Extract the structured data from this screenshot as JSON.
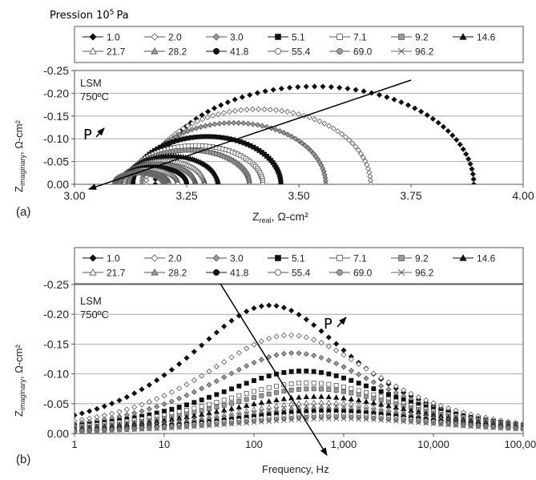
{
  "header": {
    "pression_label": "Pression 10",
    "pression_exp": "5",
    "pression_unit": "Pa"
  },
  "series_style": [
    {
      "name": "1.0",
      "marker": "diamond",
      "fill": "#111111",
      "stroke": "#111111"
    },
    {
      "name": "2.0",
      "marker": "diamond",
      "fill": "#ffffff",
      "stroke": "#555555"
    },
    {
      "name": "3.0",
      "marker": "diamond",
      "fill": "#9a9a9a",
      "stroke": "#555555"
    },
    {
      "name": "5.1",
      "marker": "square",
      "fill": "#111111",
      "stroke": "#111111"
    },
    {
      "name": "7.1",
      "marker": "square",
      "fill": "#ffffff",
      "stroke": "#555555"
    },
    {
      "name": "9.2",
      "marker": "square",
      "fill": "#9a9a9a",
      "stroke": "#555555"
    },
    {
      "name": "14.6",
      "marker": "triangle",
      "fill": "#111111",
      "stroke": "#111111"
    },
    {
      "name": "21.7",
      "marker": "triangle",
      "fill": "#ffffff",
      "stroke": "#555555"
    },
    {
      "name": "28.2",
      "marker": "triangle",
      "fill": "#9a9a9a",
      "stroke": "#555555"
    },
    {
      "name": "41.8",
      "marker": "circle",
      "fill": "#111111",
      "stroke": "#111111"
    },
    {
      "name": "55.4",
      "marker": "circle",
      "fill": "#ffffff",
      "stroke": "#555555"
    },
    {
      "name": "69.0",
      "marker": "circle",
      "fill": "#9a9a9a",
      "stroke": "#555555"
    },
    {
      "name": "96.2",
      "marker": "x",
      "fill": "none",
      "stroke": "#666666"
    }
  ],
  "chart_data": [
    {
      "type": "scatter",
      "panel_label": "(a)",
      "inner_label_line1": "LSM",
      "inner_label_line2": "750ºC",
      "arrow_label": "P",
      "xlabel_main": "Z",
      "xlabel_sub": "real",
      "xlabel_rest": ", Ω-cm²",
      "ylabel_main": "Z",
      "ylabel_sub": "imaginary",
      "ylabel_rest": ", Ω-cm²",
      "xlim": [
        3.0,
        4.0
      ],
      "ylim": [
        0.0,
        -0.25
      ],
      "xticks": [
        "3.00",
        "3.25",
        "3.50",
        "3.75",
        "4.00"
      ],
      "yticks": [
        "-0.25",
        "-0.20",
        "-0.15",
        "-0.10",
        "-0.05",
        "0.00"
      ],
      "legend": "top",
      "series": [
        {
          "name": "1.0",
          "r_start": 3.18,
          "r_end": 3.89,
          "peak": -0.215
        },
        {
          "name": "2.0",
          "r_start": 3.16,
          "r_end": 3.66,
          "peak": -0.165
        },
        {
          "name": "3.0",
          "r_start": 3.15,
          "r_end": 3.56,
          "peak": -0.135
        },
        {
          "name": "5.1",
          "r_start": 3.13,
          "r_end": 3.46,
          "peak": -0.105
        },
        {
          "name": "7.1",
          "r_start": 3.12,
          "r_end": 3.42,
          "peak": -0.085
        },
        {
          "name": "9.2",
          "r_start": 3.12,
          "r_end": 3.39,
          "peak": -0.075
        },
        {
          "name": "14.6",
          "r_start": 3.11,
          "r_end": 3.32,
          "peak": -0.062
        },
        {
          "name": "21.7",
          "r_start": 3.11,
          "r_end": 3.29,
          "peak": -0.052
        },
        {
          "name": "28.2",
          "r_start": 3.1,
          "r_end": 3.27,
          "peak": -0.045
        },
        {
          "name": "41.8",
          "r_start": 3.1,
          "r_end": 3.25,
          "peak": -0.038
        },
        {
          "name": "55.4",
          "r_start": 3.1,
          "r_end": 3.23,
          "peak": -0.032
        },
        {
          "name": "69.0",
          "r_start": 3.09,
          "r_end": 3.21,
          "peak": -0.028
        },
        {
          "name": "96.2",
          "r_start": 3.09,
          "r_end": 3.2,
          "peak": -0.025
        }
      ]
    },
    {
      "type": "scatter",
      "panel_label": "(b)",
      "inner_label_line1": "LSM",
      "inner_label_line2": "750ºC",
      "arrow_label": "P",
      "xlabel": "Frequency, Hz",
      "ylabel_main": "Z",
      "ylabel_sub": "imaginary",
      "ylabel_rest": ", Ω-cm²",
      "xscale": "log",
      "xlim": [
        1,
        100000
      ],
      "ylim": [
        0.0,
        -0.25
      ],
      "xticks": [
        "1",
        "10",
        "100",
        "1,000",
        "10,000",
        "100,000"
      ],
      "yticks": [
        "-0.25",
        "-0.20",
        "-0.15",
        "-0.10",
        "-0.05",
        "0.00"
      ],
      "legend": "top",
      "series": [
        {
          "name": "1.0",
          "f_peak": 150,
          "peak": -0.215,
          "width": 0.95
        },
        {
          "name": "2.0",
          "f_peak": 250,
          "peak": -0.165,
          "width": 1.0
        },
        {
          "name": "3.0",
          "f_peak": 280,
          "peak": -0.135,
          "width": 1.0
        },
        {
          "name": "5.1",
          "f_peak": 350,
          "peak": -0.105,
          "width": 1.05
        },
        {
          "name": "7.1",
          "f_peak": 400,
          "peak": -0.085,
          "width": 1.1
        },
        {
          "name": "9.2",
          "f_peak": 450,
          "peak": -0.075,
          "width": 1.1
        },
        {
          "name": "14.6",
          "f_peak": 500,
          "peak": -0.062,
          "width": 1.15
        },
        {
          "name": "21.7",
          "f_peak": 550,
          "peak": -0.052,
          "width": 1.15
        },
        {
          "name": "28.2",
          "f_peak": 600,
          "peak": -0.045,
          "width": 1.2
        },
        {
          "name": "41.8",
          "f_peak": 650,
          "peak": -0.038,
          "width": 1.2
        },
        {
          "name": "55.4",
          "f_peak": 700,
          "peak": -0.032,
          "width": 1.25
        },
        {
          "name": "69.0",
          "f_peak": 750,
          "peak": -0.028,
          "width": 1.25
        },
        {
          "name": "96.2",
          "f_peak": 800,
          "peak": -0.025,
          "width": 1.3
        }
      ]
    }
  ]
}
